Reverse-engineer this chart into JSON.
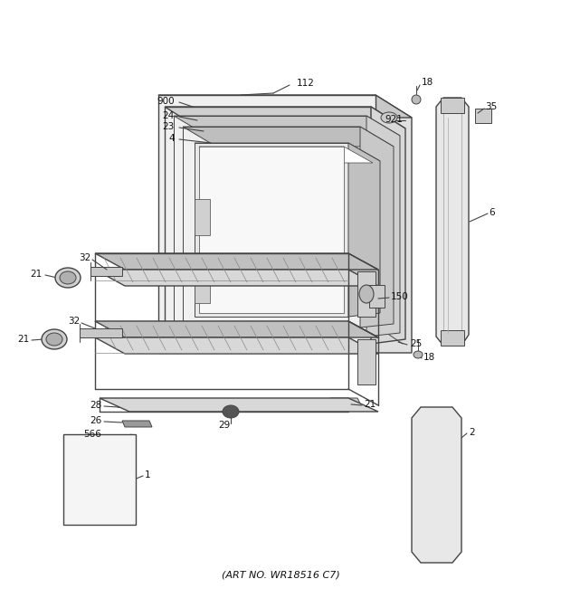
{
  "footer": "(ART NO. WR18516 C7)",
  "background_color": "#ffffff",
  "lc": "#444444",
  "fig_width": 6.2,
  "fig_height": 6.61,
  "dpi": 100
}
